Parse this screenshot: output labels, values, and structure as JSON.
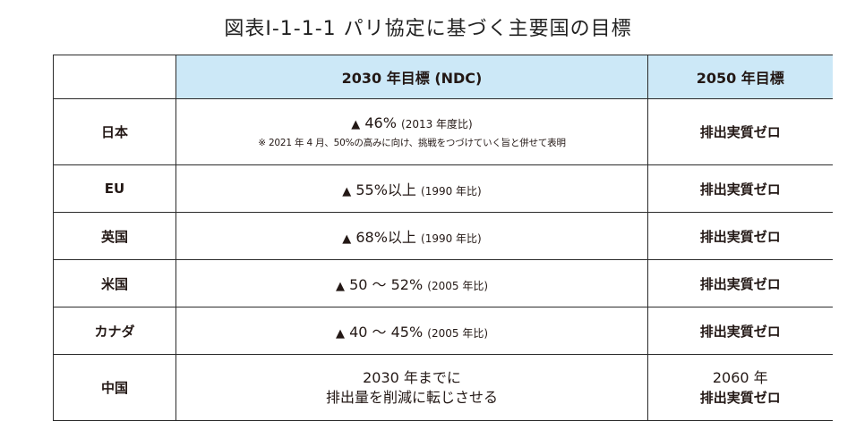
{
  "title": "図表Ⅰ-1-1-1 パリ協定に基づく主要国の目標",
  "header": {
    "country": "",
    "target_2030": "2030 年目標 (NDC)",
    "target_2050": "2050 年目標"
  },
  "rows": [
    {
      "country": "日本",
      "target_2030_main": "46%",
      "target_2030_basis": "(2013 年度比)",
      "target_2030_note": "※ 2021 年 4 月、50%の高みに向け、挑戦をつづけていく旨と併せて表明",
      "target_2050": "排出実質ゼロ"
    },
    {
      "country": "EU",
      "target_2030_main": "55%以上",
      "target_2030_basis": "(1990 年比)",
      "target_2050": "排出実質ゼロ"
    },
    {
      "country": "英国",
      "target_2030_main": "68%以上",
      "target_2030_basis": "(1990 年比)",
      "target_2050": "排出実質ゼロ"
    },
    {
      "country": "米国",
      "target_2030_main": "50 ～ 52%",
      "target_2030_basis": "(2005 年比)",
      "target_2050": "排出実質ゼロ"
    },
    {
      "country": "カナダ",
      "target_2030_main": "40 ～ 45%",
      "target_2030_basis": "(2005 年比)",
      "target_2050": "排出実質ゼロ"
    },
    {
      "country": "中国",
      "target_2030_line1": "2030 年までに",
      "target_2030_line2": "排出量を削減に転じさせる",
      "target_2050_line1": "2060 年",
      "target_2050_line2": "排出実質ゼロ"
    }
  ],
  "reduction_marker": "▲",
  "colors": {
    "header_fill": "#cce8f7",
    "border": "#2b2b2b",
    "text": "#231815"
  }
}
